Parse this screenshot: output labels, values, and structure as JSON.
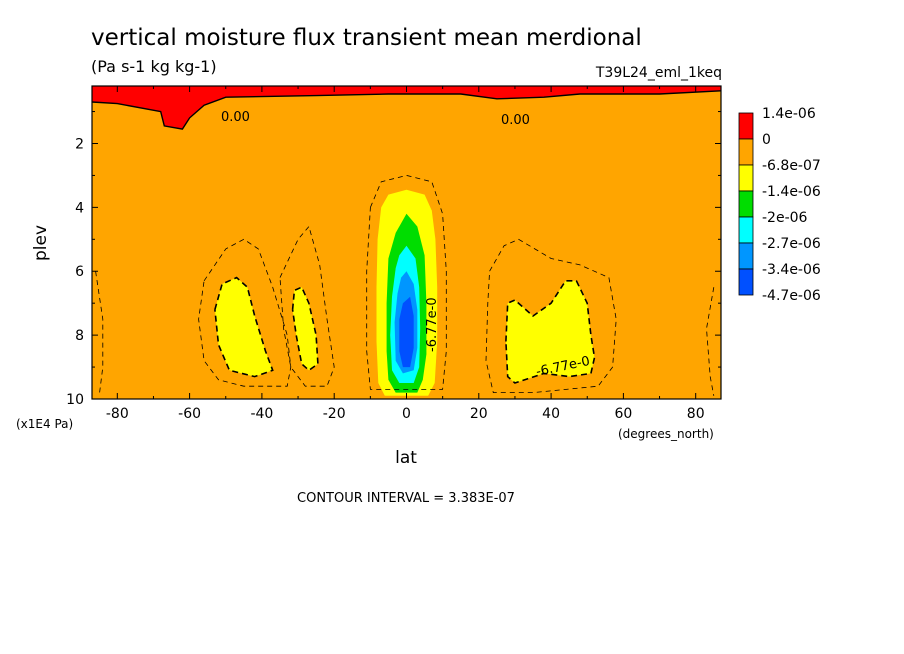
{
  "chart_data": {
    "type": "contour",
    "title": "vertical moisture flux transient mean merdional",
    "units": "(Pa s-1 kg kg-1)",
    "run_label": "T39L24_eml_1keq",
    "xlabel": "lat",
    "xunits": "(degrees_north)",
    "ylabel": "plev",
    "yunits": "(x1E4 Pa)",
    "xlim": [
      -87,
      87
    ],
    "ylim": [
      10,
      0.2
    ],
    "xticks": [
      -80,
      -60,
      -40,
      -20,
      0,
      20,
      40,
      60,
      80
    ],
    "xtick_labels": [
      "-80",
      "-60",
      "-40",
      "-20",
      "0",
      "20",
      "40",
      "60",
      "80"
    ],
    "yticks": [
      2,
      4,
      6,
      8,
      10
    ],
    "ytick_labels": [
      "2",
      "4",
      "6",
      "8",
      "10"
    ],
    "contour_interval_text": "CONTOUR INTERVAL = 3.383E-07",
    "contour_labels": [
      "0.00",
      "0.00",
      "-6.77e-0",
      "-6.77e-0"
    ],
    "colors": {
      "red": "#ff0000",
      "orange": "#ffa500",
      "yellow": "#ffff00",
      "green": "#00dd00",
      "cyan": "#00ffff",
      "lightblue": "#0096ff",
      "blue": "#0050ff"
    },
    "legend": {
      "placement": "right",
      "colors": [
        "#ff0000",
        "#ffa500",
        "#ffff00",
        "#00dd00",
        "#00ffff",
        "#0096ff",
        "#0050ff"
      ],
      "labels": [
        "1.4e-06",
        "0",
        "-6.8e-07",
        "-1.4e-06",
        "-2e-06",
        "-2.7e-06",
        "-3.4e-06",
        "-4.7e-06"
      ]
    },
    "regions": [
      {
        "level": "positive (red)",
        "color": "#ff0000",
        "shape": [
          [
            -87,
            0.2
          ],
          [
            87,
            0.2
          ],
          [
            87,
            0.35
          ],
          [
            70,
            0.45
          ],
          [
            48,
            0.45
          ],
          [
            38,
            0.55
          ],
          [
            25,
            0.6
          ],
          [
            15,
            0.45
          ],
          [
            -5,
            0.45
          ],
          [
            -25,
            0.5
          ],
          [
            -50,
            0.55
          ],
          [
            -56,
            0.8
          ],
          [
            -60,
            1.2
          ],
          [
            -62,
            1.55
          ],
          [
            -67,
            1.45
          ],
          [
            -68,
            1.0
          ],
          [
            -80,
            0.75
          ],
          [
            -87,
            0.7
          ]
        ]
      },
      {
        "level": "-6.8e-07 to -1.4e-06 (yellow)",
        "color": "#ffff00",
        "shape": [
          [
            -51,
            6.4
          ],
          [
            -47,
            6.2
          ],
          [
            -44,
            6.5
          ],
          [
            -42,
            7.4
          ],
          [
            -39,
            8.5
          ],
          [
            -37,
            9.1
          ],
          [
            -42,
            9.3
          ],
          [
            -49,
            9.1
          ],
          [
            -52,
            8.3
          ],
          [
            -53,
            7.2
          ]
        ]
      },
      {
        "level": "-6.8e-07 to -1.4e-06 (yellow)",
        "color": "#ffff00",
        "shape": [
          [
            -31,
            6.6
          ],
          [
            -29,
            6.5
          ],
          [
            -27,
            7.0
          ],
          [
            -25,
            8.0
          ],
          [
            -24.5,
            8.9
          ],
          [
            -27,
            9.1
          ],
          [
            -29,
            8.9
          ],
          [
            -30.5,
            8.0
          ],
          [
            -31.5,
            7.2
          ]
        ]
      },
      {
        "level": "-6.8e-07 to -1.4e-06 (yellow)",
        "color": "#ffff00",
        "shape": [
          [
            -7,
            4.0
          ],
          [
            -5,
            3.6
          ],
          [
            0,
            3.45
          ],
          [
            5,
            3.6
          ],
          [
            7,
            4.1
          ],
          [
            8,
            5.0
          ],
          [
            8.5,
            6.5
          ],
          [
            8.5,
            8.2
          ],
          [
            7.8,
            9.5
          ],
          [
            6,
            9.9
          ],
          [
            -6,
            9.9
          ],
          [
            -7.8,
            9.5
          ],
          [
            -8.3,
            8.2
          ],
          [
            -8.3,
            6.5
          ],
          [
            -8,
            5.0
          ]
        ]
      },
      {
        "level": "-6.8e-07 to -1.4e-06 (yellow)",
        "color": "#ffff00",
        "shape": [
          [
            28,
            7.0
          ],
          [
            30,
            6.9
          ],
          [
            35,
            7.4
          ],
          [
            40,
            7.0
          ],
          [
            44,
            6.3
          ],
          [
            47,
            6.3
          ],
          [
            50,
            7.0
          ],
          [
            51,
            8.0
          ],
          [
            52,
            8.7
          ],
          [
            51,
            9.2
          ],
          [
            45,
            9.3
          ],
          [
            38,
            9.2
          ],
          [
            30,
            9.5
          ],
          [
            28,
            9.3
          ],
          [
            27.5,
            8.2
          ]
        ]
      },
      {
        "level": "-1.4e-06 to -2e-06 (green)",
        "color": "#00dd00",
        "shape": [
          [
            -3,
            4.8
          ],
          [
            0,
            4.2
          ],
          [
            3,
            4.6
          ],
          [
            5,
            5.5
          ],
          [
            5.5,
            7.0
          ],
          [
            5.5,
            8.6
          ],
          [
            4.5,
            9.4
          ],
          [
            3,
            9.8
          ],
          [
            -3,
            9.8
          ],
          [
            -5,
            9.4
          ],
          [
            -5.5,
            8.5
          ],
          [
            -5.5,
            7.0
          ],
          [
            -5,
            5.6
          ]
        ]
      },
      {
        "level": "-2e-06 to -2.7e-06 (cyan)",
        "color": "#00ffff",
        "shape": [
          [
            -2,
            5.5
          ],
          [
            0,
            5.2
          ],
          [
            2.5,
            5.6
          ],
          [
            3.5,
            6.5
          ],
          [
            3.8,
            7.8
          ],
          [
            3.5,
            9.0
          ],
          [
            2,
            9.5
          ],
          [
            -2,
            9.5
          ],
          [
            -4,
            9.1
          ],
          [
            -4.5,
            8.0
          ],
          [
            -4,
            6.8
          ],
          [
            -3,
            5.9
          ]
        ]
      },
      {
        "level": "-2.7e-06 to -3.4e-06 (lightblue)",
        "color": "#0096ff",
        "shape": [
          [
            -1.5,
            6.2
          ],
          [
            0,
            6.0
          ],
          [
            2,
            6.4
          ],
          [
            3,
            7.2
          ],
          [
            3,
            8.4
          ],
          [
            2,
            9.1
          ],
          [
            -1,
            9.2
          ],
          [
            -3,
            8.8
          ],
          [
            -3.3,
            7.6
          ],
          [
            -2.5,
            6.7
          ]
        ]
      },
      {
        "level": "-3.4e-06 to -4.7e-06 (blue)",
        "color": "#0050ff",
        "shape": [
          [
            -1,
            7.0
          ],
          [
            1,
            6.8
          ],
          [
            2,
            7.4
          ],
          [
            2,
            8.4
          ],
          [
            1,
            9.0
          ],
          [
            -1,
            9.0
          ],
          [
            -2,
            8.5
          ],
          [
            -2,
            7.5
          ]
        ]
      }
    ],
    "contours": [
      {
        "style": "solid",
        "shape": [
          [
            -87,
            0.7
          ],
          [
            -80,
            0.75
          ],
          [
            -68,
            1.0
          ],
          [
            -67,
            1.45
          ],
          [
            -62,
            1.55
          ],
          [
            -60,
            1.2
          ],
          [
            -56,
            0.8
          ],
          [
            -50,
            0.55
          ],
          [
            -25,
            0.5
          ],
          [
            -5,
            0.45
          ],
          [
            15,
            0.45
          ],
          [
            25,
            0.6
          ],
          [
            38,
            0.55
          ],
          [
            48,
            0.45
          ],
          [
            70,
            0.45
          ],
          [
            87,
            0.35
          ]
        ]
      },
      {
        "style": "dashed",
        "shape": [
          [
            -53,
            7.2
          ],
          [
            -51,
            6.4
          ],
          [
            -47,
            6.2
          ],
          [
            -44,
            6.5
          ],
          [
            -42,
            7.4
          ],
          [
            -39,
            8.5
          ],
          [
            -37,
            9.1
          ],
          [
            -42,
            9.3
          ],
          [
            -49,
            9.1
          ],
          [
            -52,
            8.3
          ],
          [
            -53,
            7.2
          ]
        ]
      },
      {
        "style": "dashed",
        "shape": [
          [
            -31.5,
            7.2
          ],
          [
            -31,
            6.6
          ],
          [
            -29,
            6.5
          ],
          [
            -27,
            7.0
          ],
          [
            -25,
            8.0
          ],
          [
            -24.5,
            8.9
          ],
          [
            -27,
            9.1
          ],
          [
            -29,
            8.9
          ],
          [
            -30.5,
            8.0
          ],
          [
            -31.5,
            7.2
          ]
        ]
      },
      {
        "style": "dashed",
        "shape": [
          [
            27.5,
            8.2
          ],
          [
            28,
            7.0
          ],
          [
            30,
            6.9
          ],
          [
            35,
            7.4
          ],
          [
            40,
            7.0
          ],
          [
            44,
            6.3
          ],
          [
            47,
            6.3
          ],
          [
            50,
            7.0
          ],
          [
            51,
            8.0
          ],
          [
            52,
            8.7
          ],
          [
            51,
            9.2
          ],
          [
            45,
            9.3
          ],
          [
            38,
            9.2
          ],
          [
            30,
            9.5
          ],
          [
            28,
            9.3
          ],
          [
            27.5,
            8.2
          ]
        ]
      },
      {
        "style": "thin-dashed",
        "shape": [
          [
            -56,
            6.3
          ],
          [
            -50,
            5.3
          ],
          [
            -45,
            5.0
          ],
          [
            -41,
            5.3
          ],
          [
            -37,
            6.5
          ],
          [
            -33,
            8.0
          ],
          [
            -32,
            9.0
          ],
          [
            -33,
            9.6
          ],
          [
            -45,
            9.6
          ],
          [
            -52,
            9.4
          ],
          [
            -56,
            8.8
          ],
          [
            -57.5,
            7.5
          ],
          [
            -56,
            6.3
          ]
        ]
      },
      {
        "style": "thin-dashed",
        "shape": [
          [
            -35,
            6.2
          ],
          [
            -30,
            5.0
          ],
          [
            -27,
            4.6
          ],
          [
            -24,
            5.8
          ],
          [
            -22,
            7.5
          ],
          [
            -20,
            9.0
          ],
          [
            -22,
            9.6
          ],
          [
            -28,
            9.6
          ],
          [
            -32,
            9.0
          ],
          [
            -34,
            7.8
          ],
          [
            -35,
            6.2
          ]
        ]
      },
      {
        "style": "thin-dashed",
        "shape": [
          [
            23,
            6.0
          ],
          [
            27,
            5.2
          ],
          [
            31,
            5.0
          ],
          [
            40,
            5.6
          ],
          [
            48,
            5.8
          ],
          [
            56,
            6.2
          ],
          [
            58,
            7.5
          ],
          [
            57,
            9.0
          ],
          [
            53,
            9.6
          ],
          [
            35,
            9.8
          ],
          [
            24,
            9.8
          ],
          [
            22,
            8.8
          ],
          [
            22.5,
            7.0
          ],
          [
            23,
            6.0
          ]
        ]
      },
      {
        "style": "thin-dashed",
        "shape": [
          [
            -10,
            4.0
          ],
          [
            -7,
            3.2
          ],
          [
            0,
            3.0
          ],
          [
            7,
            3.2
          ],
          [
            10,
            4.2
          ],
          [
            11,
            6.0
          ],
          [
            11,
            8.5
          ],
          [
            10,
            9.7
          ],
          [
            -10,
            9.7
          ],
          [
            -11,
            8.5
          ],
          [
            -11,
            6.0
          ],
          [
            -10,
            4.0
          ]
        ]
      },
      {
        "style": "thin-dashed",
        "shape": [
          [
            -86,
            6.0
          ],
          [
            -84,
            7.5
          ],
          [
            -84,
            9.0
          ],
          [
            -85,
            9.9
          ]
        ]
      },
      {
        "style": "thin-dashed",
        "shape": [
          [
            85,
            6.5
          ],
          [
            83,
            7.8
          ],
          [
            84,
            9.3
          ],
          [
            85,
            9.9
          ]
        ]
      }
    ]
  }
}
